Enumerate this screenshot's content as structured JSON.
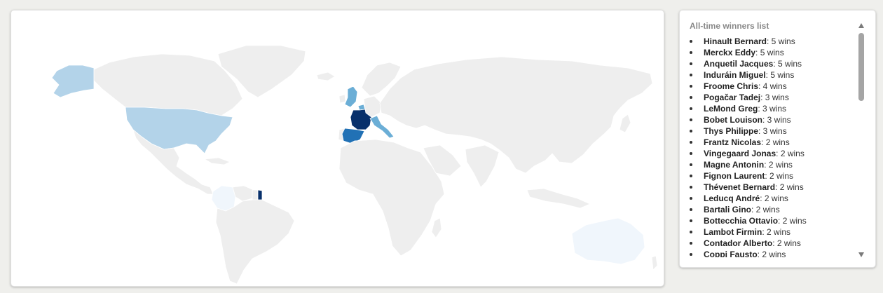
{
  "colors": {
    "land": "#eeeeee",
    "border": "#ffffff",
    "wins_5_plus": "#08306b",
    "wins_4": "#2171b5",
    "wins_3": "#6baed6",
    "wins_1": "#b3d3e9",
    "wins_min": "#f0f6fc"
  },
  "map": {
    "highlighted_countries": [
      {
        "country": "France",
        "shade": "darkest"
      },
      {
        "country": "Spain",
        "shade": "dark"
      },
      {
        "country": "Italy",
        "shade": "medium"
      },
      {
        "country": "Belgium",
        "shade": "medium"
      },
      {
        "country": "United Kingdom",
        "shade": "medium"
      },
      {
        "country": "United States",
        "shade": "light"
      },
      {
        "country": "French Guiana",
        "shade": "darkest"
      },
      {
        "country": "Colombia",
        "shade": "lightest"
      },
      {
        "country": "Australia",
        "shade": "lightest"
      }
    ]
  },
  "winners": {
    "title": "All-time winners list",
    "items": [
      {
        "name": "Hinault Bernard",
        "wins": ": 5 wins"
      },
      {
        "name": "Merckx Eddy",
        "wins": ": 5 wins"
      },
      {
        "name": "Anquetil Jacques",
        "wins": ": 5 wins"
      },
      {
        "name": "Induráin Miguel",
        "wins": ": 5 wins"
      },
      {
        "name": "Froome Chris",
        "wins": ": 4 wins"
      },
      {
        "name": "Pogačar Tadej",
        "wins": ": 3 wins"
      },
      {
        "name": "LeMond Greg",
        "wins": ": 3 wins"
      },
      {
        "name": "Bobet Louison",
        "wins": ": 3 wins"
      },
      {
        "name": "Thys Philippe",
        "wins": ": 3 wins"
      },
      {
        "name": "Frantz Nicolas",
        "wins": ": 2 wins"
      },
      {
        "name": "Vingegaard Jonas",
        "wins": ": 2 wins"
      },
      {
        "name": "Magne Antonin",
        "wins": ": 2 wins"
      },
      {
        "name": "Fignon Laurent",
        "wins": ": 2 wins"
      },
      {
        "name": "Thévenet Bernard",
        "wins": ": 2 wins"
      },
      {
        "name": "Leducq André",
        "wins": ": 2 wins"
      },
      {
        "name": "Bartali Gino",
        "wins": ": 2 wins"
      },
      {
        "name": "Bottecchia Ottavio",
        "wins": ": 2 wins"
      },
      {
        "name": "Lambot Firmin",
        "wins": ": 2 wins"
      },
      {
        "name": "Contador Alberto",
        "wins": ": 2 wins"
      },
      {
        "name": "Coppi Fausto",
        "wins": ": 2 wins"
      }
    ]
  }
}
